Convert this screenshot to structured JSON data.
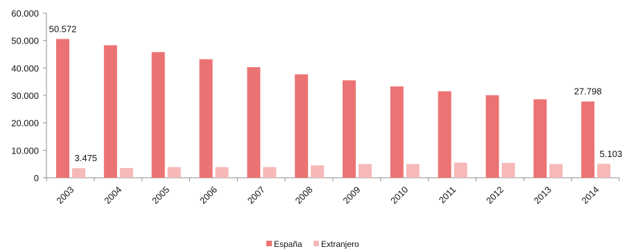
{
  "chart_data": {
    "type": "bar",
    "categories": [
      "2003",
      "2004",
      "2005",
      "2006",
      "2007",
      "2008",
      "2009",
      "2010",
      "2011",
      "2012",
      "2013",
      "2014"
    ],
    "series": [
      {
        "name": "España",
        "color": "#ec7373",
        "values": [
          50572,
          48300,
          45800,
          43200,
          40300,
          37700,
          35500,
          33300,
          31500,
          30100,
          28600,
          27798
        ]
      },
      {
        "name": "Extranjero",
        "color": "#f6b8b8",
        "values": [
          3475,
          3550,
          3900,
          3900,
          3900,
          4500,
          5000,
          5000,
          5500,
          5400,
          5000,
          5103
        ]
      }
    ],
    "ylim": [
      0,
      60000
    ],
    "yticks": [
      "0",
      "10.000",
      "20.000",
      "30.000",
      "40.000",
      "50.000",
      "60.000"
    ],
    "data_labels": [
      {
        "series": 0,
        "index": 0,
        "text": "50.572"
      },
      {
        "series": 1,
        "index": 0,
        "text": "3.475"
      },
      {
        "series": 0,
        "index": 11,
        "text": "27.798"
      },
      {
        "series": 1,
        "index": 11,
        "text": "5.103"
      }
    ],
    "grid": false,
    "legend_position": "bottom-center"
  }
}
